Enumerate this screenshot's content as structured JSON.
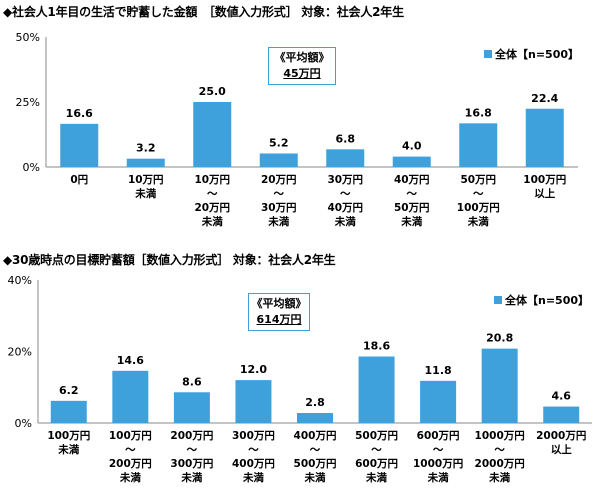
{
  "chart_data": [
    {
      "type": "bar",
      "title": "◆社会人1年目の生活で貯蓄した金額　［数値入力形式］ 対象：社会人2年生",
      "categories": [
        "0円",
        "10万円\n未満",
        "10万円\n～\n20万円\n未満",
        "20万円\n～\n30万円\n未満",
        "30万円\n～\n40万円\n未満",
        "40万円\n～\n50万円\n未満",
        "50万円\n～\n100万円\n未満",
        "100万円\n以上"
      ],
      "series": [
        {
          "name": "全体【n=500】",
          "values": [
            16.6,
            3.2,
            25.0,
            5.2,
            6.8,
            4.0,
            16.8,
            22.4
          ]
        }
      ],
      "value_labels": [
        "16.6",
        "3.2",
        "25.0",
        "5.2",
        "6.8",
        "4.0",
        "16.8",
        "22.4"
      ],
      "y_ticks": [
        "0%",
        "25%",
        "50%"
      ],
      "ylim": [
        0,
        50
      ],
      "grid": false,
      "legend_position": "top-right",
      "average_box": {
        "label": "《平均額》",
        "value": "45万円"
      },
      "bar_color": "#3fa1dc"
    },
    {
      "type": "bar",
      "title": "◆30歳時点の目標貯蓄額［数値入力形式］ 対象：社会人2年生",
      "categories": [
        "100万円\n未満",
        "100万円\n～\n200万円\n未満",
        "200万円\n～\n300万円\n未満",
        "300万円\n～\n400万円\n未満",
        "400万円\n～\n500万円\n未満",
        "500万円\n～\n600万円\n未満",
        "600万円\n～\n1000万円\n未満",
        "1000万円\n～\n2000万円\n未満",
        "2000万円\n以上"
      ],
      "series": [
        {
          "name": "全体【n=500】",
          "values": [
            6.2,
            14.6,
            8.6,
            12.0,
            2.8,
            18.6,
            11.8,
            20.8,
            4.6
          ]
        }
      ],
      "value_labels": [
        "6.2",
        "14.6",
        "8.6",
        "12.0",
        "2.8",
        "18.6",
        "11.8",
        "20.8",
        "4.6"
      ],
      "y_ticks": [
        "0%",
        "20%",
        "40%"
      ],
      "ylim": [
        0,
        40
      ],
      "grid": false,
      "legend_position": "top-right",
      "average_box": {
        "label": "《平均額》",
        "value": "614万円"
      },
      "bar_color": "#3fa1dc"
    }
  ]
}
